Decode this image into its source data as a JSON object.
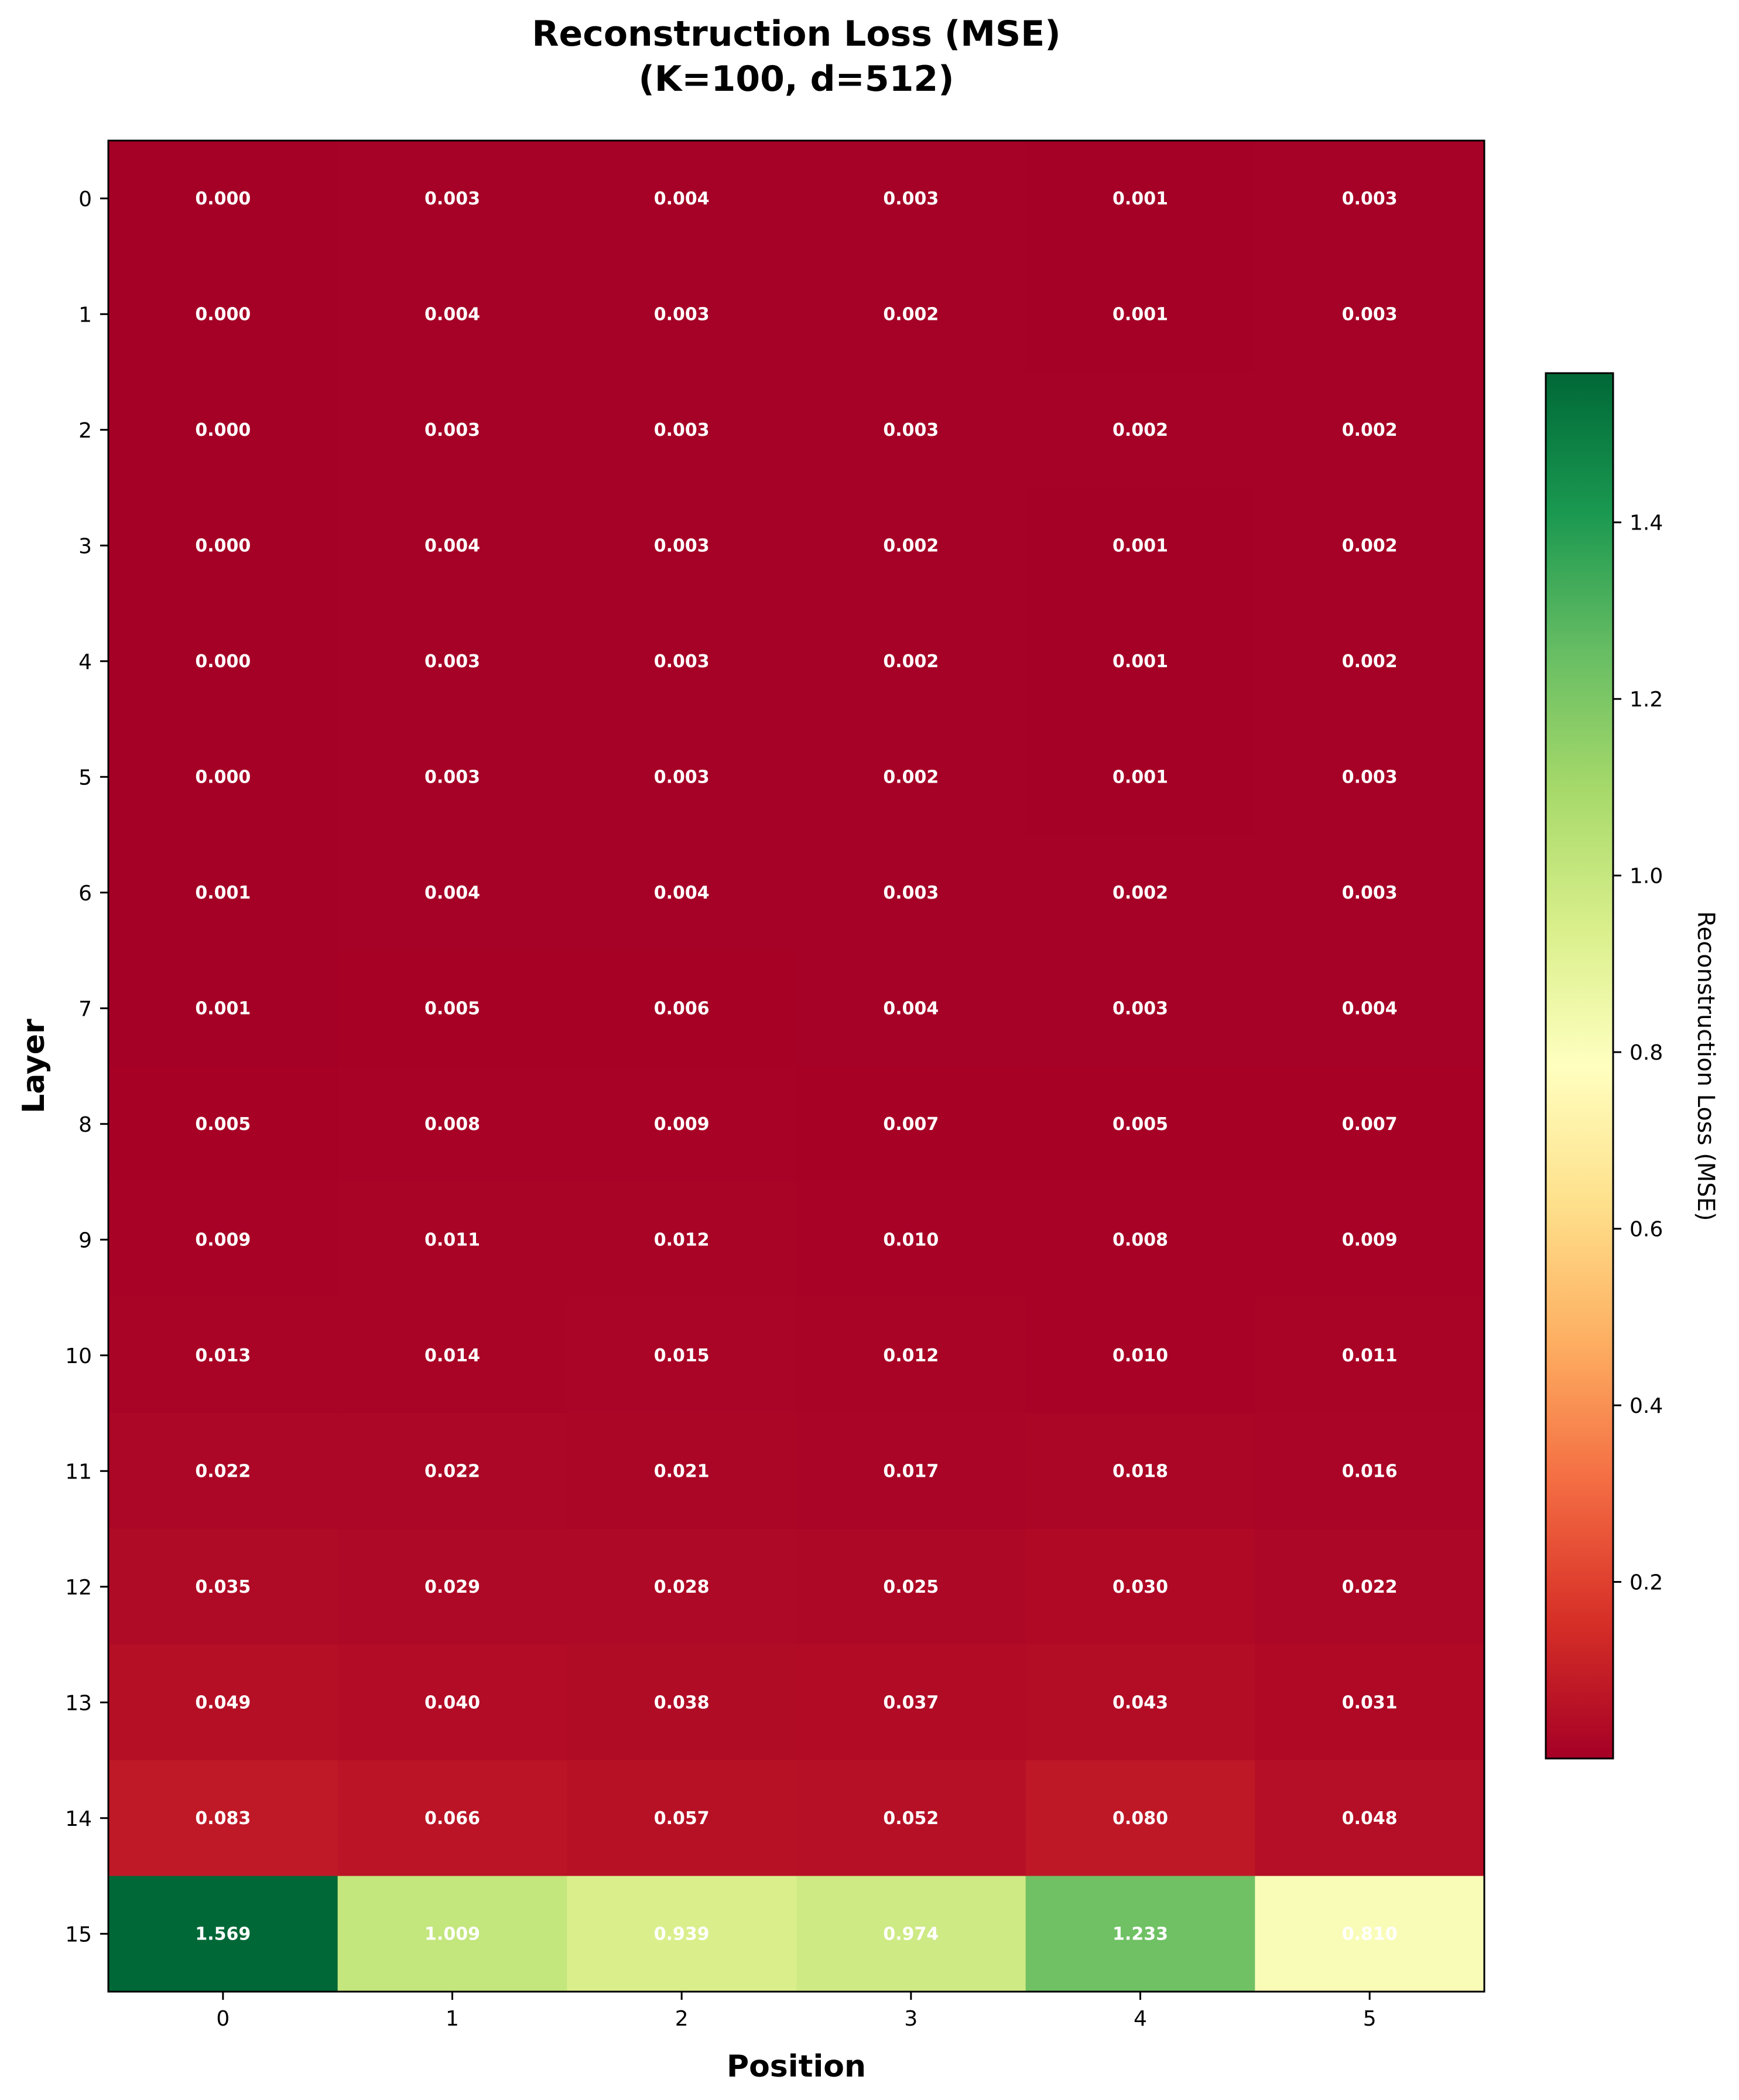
{
  "chart_data": {
    "type": "heatmap",
    "title": [
      "Reconstruction Loss (MSE)",
      "(K=100, d=512)"
    ],
    "xlabel": "Position",
    "ylabel": "Layer",
    "x_ticks": [
      "0",
      "1",
      "2",
      "3",
      "4",
      "5"
    ],
    "y_ticks": [
      "0",
      "1",
      "2",
      "3",
      "4",
      "5",
      "6",
      "7",
      "8",
      "9",
      "10",
      "11",
      "12",
      "13",
      "14",
      "15"
    ],
    "values": [
      [
        "0.000",
        "0.003",
        "0.004",
        "0.003",
        "0.001",
        "0.003"
      ],
      [
        "0.000",
        "0.004",
        "0.003",
        "0.002",
        "0.001",
        "0.003"
      ],
      [
        "0.000",
        "0.003",
        "0.003",
        "0.003",
        "0.002",
        "0.002"
      ],
      [
        "0.000",
        "0.004",
        "0.003",
        "0.002",
        "0.001",
        "0.002"
      ],
      [
        "0.000",
        "0.003",
        "0.003",
        "0.002",
        "0.001",
        "0.002"
      ],
      [
        "0.000",
        "0.003",
        "0.003",
        "0.002",
        "0.001",
        "0.003"
      ],
      [
        "0.001",
        "0.004",
        "0.004",
        "0.003",
        "0.002",
        "0.003"
      ],
      [
        "0.001",
        "0.005",
        "0.006",
        "0.004",
        "0.003",
        "0.004"
      ],
      [
        "0.005",
        "0.008",
        "0.009",
        "0.007",
        "0.005",
        "0.007"
      ],
      [
        "0.009",
        "0.011",
        "0.012",
        "0.010",
        "0.008",
        "0.009"
      ],
      [
        "0.013",
        "0.014",
        "0.015",
        "0.012",
        "0.010",
        "0.011"
      ],
      [
        "0.022",
        "0.022",
        "0.021",
        "0.017",
        "0.018",
        "0.016"
      ],
      [
        "0.035",
        "0.029",
        "0.028",
        "0.025",
        "0.030",
        "0.022"
      ],
      [
        "0.049",
        "0.040",
        "0.038",
        "0.037",
        "0.043",
        "0.031"
      ],
      [
        "0.083",
        "0.066",
        "0.057",
        "0.052",
        "0.080",
        "0.048"
      ],
      [
        "1.569",
        "1.009",
        "0.939",
        "0.974",
        "1.233",
        "0.810"
      ]
    ],
    "colormap": "RdYlGn",
    "vmin": 0.0,
    "vmax": 1.569,
    "colorbar": {
      "label": "Reconstruction Loss (MSE)",
      "ticks": [
        "0.2",
        "0.4",
        "0.6",
        "0.8",
        "1.0",
        "1.2",
        "1.4"
      ]
    }
  },
  "colors": {
    "colormap_stops": [
      "#a50026",
      "#d73027",
      "#f46d43",
      "#fdae61",
      "#fee08b",
      "#ffffbf",
      "#d9ef8b",
      "#a6d96a",
      "#66bd63",
      "#1a9850",
      "#006837"
    ]
  }
}
